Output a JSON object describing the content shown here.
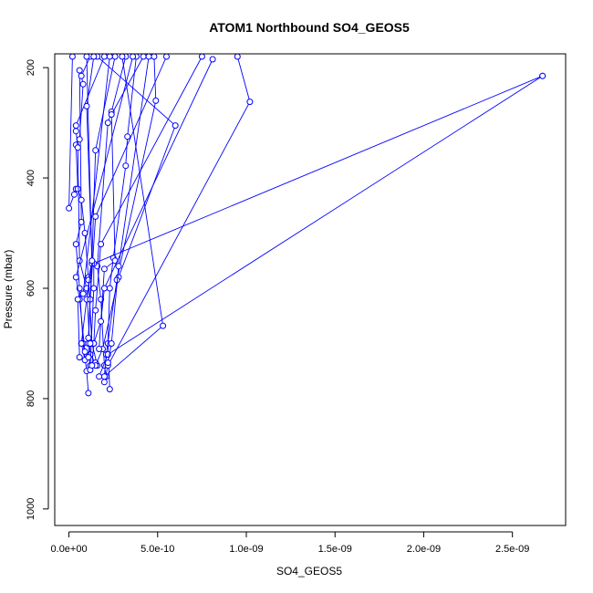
{
  "chart_data": {
    "type": "line",
    "title": "ATOM1 Northbound SO4_GEOS5",
    "xlabel": "SO4_GEOS5",
    "ylabel": "Pressure (mbar)",
    "xlim": [
      -8e-11,
      2.8e-09
    ],
    "ylim": [
      1030,
      175
    ],
    "y_reversed": true,
    "x_ticks": [
      {
        "value": 0,
        "label": "0.0e+00"
      },
      {
        "value": 5e-10,
        "label": "5.0e-10"
      },
      {
        "value": 1e-09,
        "label": "1.0e-09"
      },
      {
        "value": 1.5e-09,
        "label": "1.5e-09"
      },
      {
        "value": 2e-09,
        "label": "2.0e-09"
      },
      {
        "value": 2.5e-09,
        "label": "2.5e-09"
      }
    ],
    "y_ticks": [
      {
        "value": 200,
        "label": "200"
      },
      {
        "value": 400,
        "label": "400"
      },
      {
        "value": 600,
        "label": "600"
      },
      {
        "value": 800,
        "label": "800"
      },
      {
        "value": 1000,
        "label": "1000"
      }
    ],
    "series_color": "#0000ff",
    "marker": "open-circle",
    "grid": false,
    "series": [
      {
        "points": [
          [
            6e-11,
            205
          ],
          [
            7e-11,
            480
          ],
          [
            4e-11,
            520
          ],
          [
            6e-11,
            600
          ],
          [
            8e-11,
            700
          ],
          [
            1e-10,
            750
          ],
          [
            1.1e-10,
            790
          ]
        ]
      },
      {
        "points": [
          [
            2e-11,
            180
          ],
          [
            0,
            455
          ],
          [
            3e-11,
            430
          ],
          [
            4e-11,
            420
          ]
        ]
      },
      {
        "points": [
          [
            1.2e-10,
            180
          ],
          [
            7e-11,
            215
          ],
          [
            8e-11,
            230
          ],
          [
            6e-11,
            330
          ],
          [
            4e-11,
            340
          ],
          [
            5e-11,
            420
          ],
          [
            7e-11,
            440
          ],
          [
            9e-11,
            500
          ],
          [
            1.1e-10,
            580
          ],
          [
            1.3e-10,
            700
          ],
          [
            1.6e-10,
            740
          ]
        ]
      },
      {
        "points": [
          [
            2e-10,
            180
          ],
          [
            4e-11,
            305
          ],
          [
            4e-11,
            315
          ],
          [
            5e-11,
            345
          ],
          [
            6e-11,
            550
          ],
          [
            1e-10,
            600
          ],
          [
            1.2e-10,
            720
          ],
          [
            1.5e-10,
            735
          ]
        ]
      },
      {
        "points": [
          [
            2.6e-10,
            180
          ],
          [
            1.5e-10,
            350
          ],
          [
            1.3e-10,
            550
          ],
          [
            1.1e-10,
            585
          ],
          [
            1.3e-10,
            700
          ]
        ]
      },
      {
        "points": [
          [
            3.2e-10,
            180
          ],
          [
            2.4e-10,
            280
          ],
          [
            2.2e-10,
            300
          ],
          [
            1.6e-10,
            560
          ],
          [
            1.8e-10,
            620
          ],
          [
            2e-10,
            740
          ],
          [
            2.1e-10,
            760
          ]
        ]
      },
      {
        "points": [
          [
            3.8e-10,
            180
          ],
          [
            3.3e-10,
            325
          ],
          [
            3.2e-10,
            378
          ],
          [
            2.5e-10,
            545
          ],
          [
            2.3e-10,
            600
          ],
          [
            2.2e-10,
            700
          ],
          [
            2.3e-10,
            783
          ]
        ]
      },
      {
        "points": [
          [
            1.6e-10,
            180
          ],
          [
            6e-10,
            305
          ],
          [
            2.8e-10,
            580
          ],
          [
            1.9e-10,
            710
          ],
          [
            1.5e-10,
            740
          ]
        ]
      },
      {
        "points": [
          [
            4.2e-10,
            180
          ],
          [
            2.4e-10,
            285
          ],
          [
            2.6e-10,
            550
          ],
          [
            2e-10,
            565
          ],
          [
            1.7e-10,
            710
          ]
        ]
      },
      {
        "points": [
          [
            4.8e-10,
            180
          ],
          [
            4.9e-10,
            260
          ],
          [
            2.7e-10,
            585
          ],
          [
            2.1e-10,
            720
          ],
          [
            2e-10,
            760
          ]
        ]
      },
      {
        "points": [
          [
            8.1e-10,
            185
          ],
          [
            2e-10,
            600
          ],
          [
            1.8e-10,
            660
          ],
          [
            1.4e-10,
            700
          ]
        ]
      },
      {
        "points": [
          [
            9.5e-10,
            180
          ],
          [
            1.02e-09,
            262
          ],
          [
            2.2e-10,
            740
          ],
          [
            2e-10,
            770
          ]
        ]
      },
      {
        "points": [
          [
            3e-10,
            180
          ],
          [
            5.3e-10,
            668
          ],
          [
            2e-10,
            760
          ]
        ]
      },
      {
        "points": [
          [
            2.67e-09,
            215
          ],
          [
            1.4e-10,
            555
          ],
          [
            1.4e-10,
            600
          ],
          [
            1.2e-10,
            740
          ]
        ]
      },
      {
        "points": [
          [
            2.67e-09,
            215
          ],
          [
            2.2e-10,
            720
          ],
          [
            1.7e-10,
            760
          ]
        ]
      },
      {
        "points": [
          [
            1e-10,
            180
          ],
          [
            1.3e-10,
            555
          ],
          [
            1e-10,
            620
          ],
          [
            7e-11,
            700
          ],
          [
            9e-11,
            730
          ]
        ]
      },
      {
        "points": [
          [
            5.5e-10,
            180
          ],
          [
            1.5e-10,
            470
          ],
          [
            1.2e-10,
            620
          ],
          [
            1.1e-10,
            700
          ],
          [
            1.2e-10,
            748
          ]
        ]
      },
      {
        "points": [
          [
            7.5e-10,
            180
          ],
          [
            1.8e-10,
            520
          ],
          [
            1.5e-10,
            640
          ],
          [
            1.4e-10,
            700
          ],
          [
            1.3e-10,
            740
          ]
        ]
      },
      {
        "points": [
          [
            3.6e-10,
            180
          ],
          [
            4e-11,
            580
          ],
          [
            6e-11,
            620
          ],
          [
            9e-11,
            715
          ],
          [
            1.1e-10,
            725
          ]
        ]
      },
      {
        "points": [
          [
            2.3e-10,
            180
          ],
          [
            8e-11,
            610
          ],
          [
            5e-11,
            620
          ],
          [
            6e-11,
            725
          ]
        ]
      },
      {
        "points": [
          [
            4.5e-10,
            180
          ],
          [
            2.8e-10,
            560
          ],
          [
            2.4e-10,
            700
          ],
          [
            2.2e-10,
            735
          ]
        ]
      },
      {
        "points": [
          [
            1.4e-10,
            180
          ],
          [
            1e-10,
            270
          ],
          [
            1.3e-10,
            550
          ],
          [
            1.1e-10,
            690
          ],
          [
            1.2e-10,
            700
          ]
        ]
      }
    ]
  }
}
